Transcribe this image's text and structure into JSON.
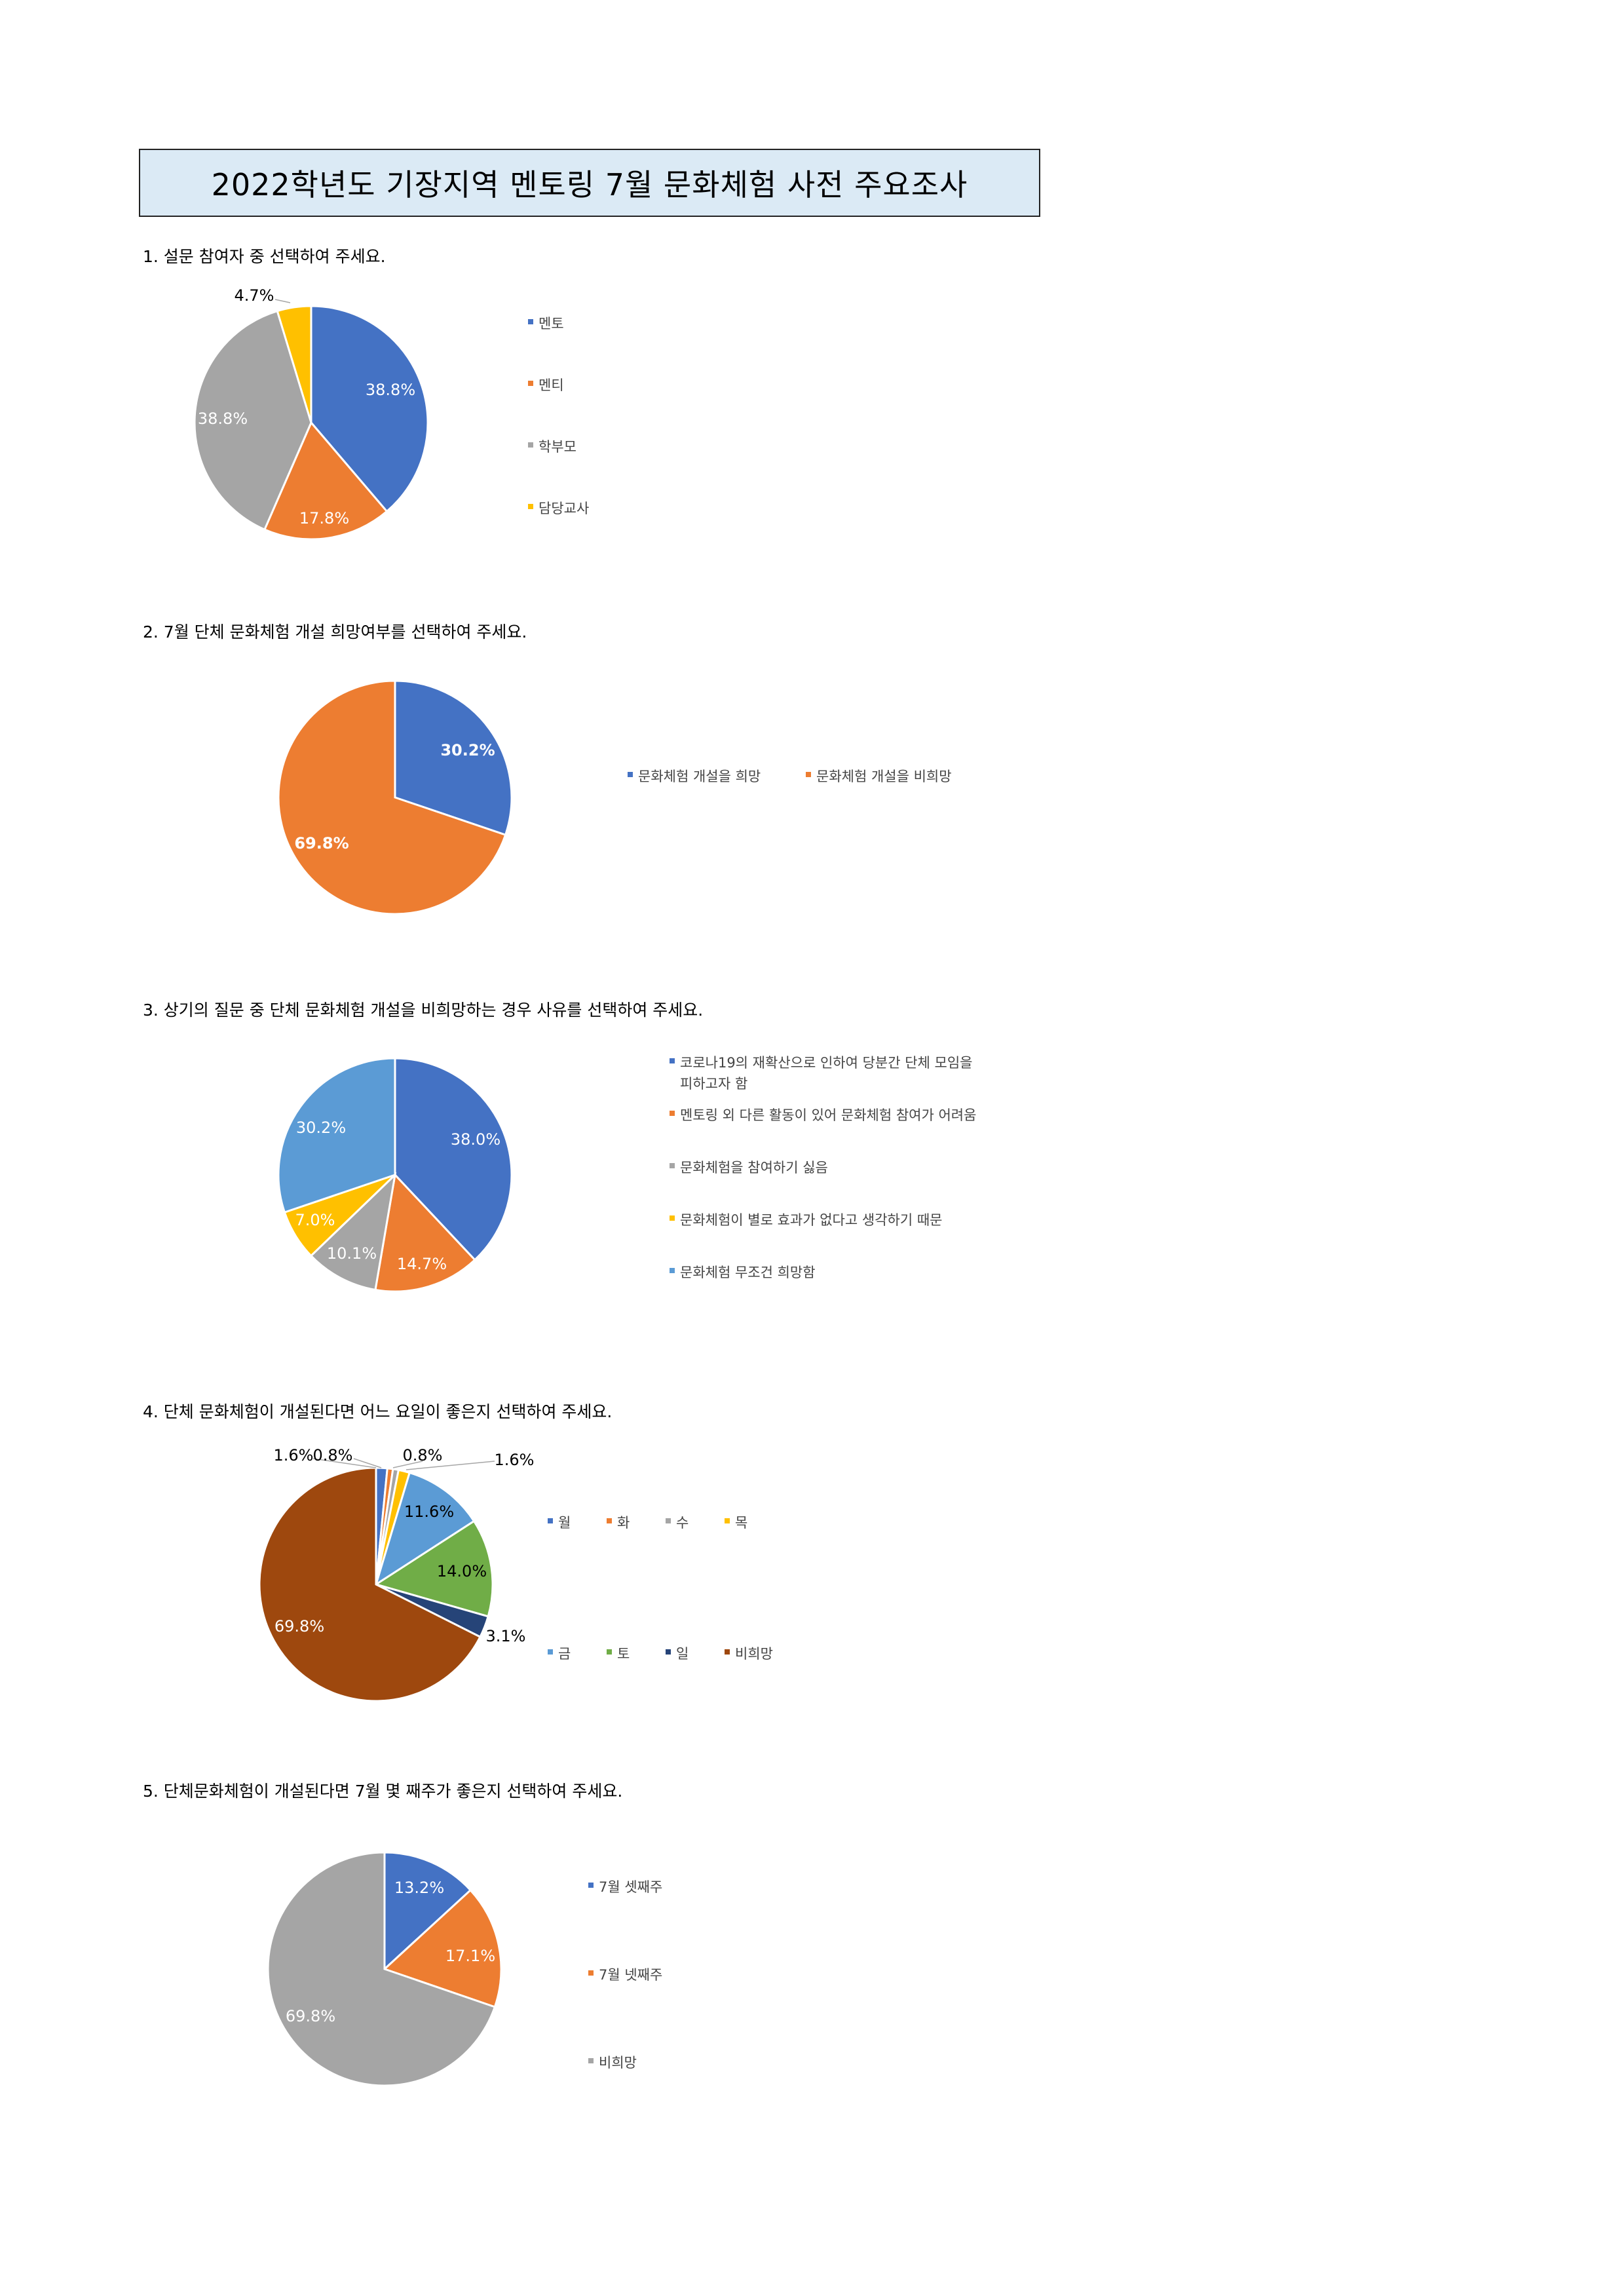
{
  "page": {
    "title": "2022학년도 기장지역 멘토링 7월 문화체험 사전 주요조사"
  },
  "charts": [
    {
      "question": "1. 설문 참여자 중 선택하여 주세요.",
      "type": "pie",
      "categories": [
        "멘토",
        "멘티",
        "학부모",
        "담당교사"
      ],
      "values": [
        38.8,
        17.8,
        38.8,
        4.7
      ],
      "labels": [
        "38.8%",
        "17.8%",
        "38.8%",
        "4.7%"
      ],
      "colors": [
        "#4472c4",
        "#ed7d31",
        "#a5a5a5",
        "#ffc000"
      ],
      "legend_position": "right"
    },
    {
      "question": "2. 7월 단체 문화체험 개설 희망여부를 선택하여 주세요.",
      "type": "pie",
      "categories": [
        "문화체험 개설을 희망",
        "문화체험 개설을 비희망"
      ],
      "values": [
        30.2,
        69.8
      ],
      "labels": [
        "30.2%",
        "69.8%"
      ],
      "colors": [
        "#4472c4",
        "#ed7d31"
      ],
      "legend_position": "right"
    },
    {
      "question": "3. 상기의 질문 중 단체 문화체험 개설을 비희망하는 경우 사유를 선택하여 주세요.",
      "type": "pie",
      "categories": [
        "코로나19의 재확산으로 인하여 당분간 단체 모임을\n피하고자 함",
        "멘토링 외 다른 활동이 있어 문화체험 참여가 어려움",
        "문화체험을 참여하기 싫음",
        "문화체험이 별로 효과가 없다고 생각하기 때문",
        "문화체험 무조건 희망함"
      ],
      "values": [
        38.0,
        14.7,
        10.1,
        7.0,
        30.2
      ],
      "labels": [
        "38.0%",
        "14.7%",
        "10.1%",
        "7.0%",
        "30.2%"
      ],
      "colors": [
        "#4472c4",
        "#ed7d31",
        "#a5a5a5",
        "#ffc000",
        "#5b9bd5"
      ],
      "legend_position": "right"
    },
    {
      "question": "4. 단체 문화체험이 개설된다면 어느 요일이 좋은지 선택하여 주세요.",
      "type": "pie",
      "categories": [
        "월",
        "화",
        "수",
        "목",
        "금",
        "토",
        "일",
        "비희망"
      ],
      "values": [
        1.6,
        0.8,
        0.8,
        1.6,
        11.6,
        14.0,
        3.1,
        69.8
      ],
      "labels": [
        "1.6%",
        "0.8%",
        "0.8%",
        "1.6%",
        "11.6%",
        "14.0%",
        "3.1%",
        "69.8%"
      ],
      "colors": [
        "#4472c4",
        "#ed7d31",
        "#a5a5a5",
        "#ffc000",
        "#5b9bd5",
        "#70ad47",
        "#264478",
        "#9e480e"
      ],
      "legend_position": "right"
    },
    {
      "question": "5. 단체문화체험이 개설된다면 7월 몇 째주가 좋은지 선택하여 주세요.",
      "type": "pie",
      "categories": [
        "7월 셋째주",
        "7월 넷째주",
        "비희망"
      ],
      "values": [
        13.2,
        17.1,
        69.8
      ],
      "labels": [
        "13.2%",
        "17.1%",
        "69.8%"
      ],
      "colors": [
        "#4472c4",
        "#ed7d31",
        "#a5a5a5"
      ],
      "legend_position": "right"
    }
  ]
}
